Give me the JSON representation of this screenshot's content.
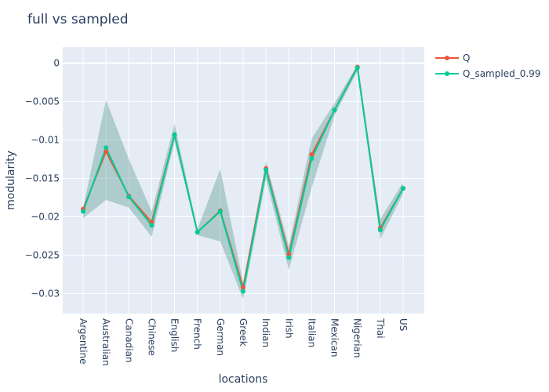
{
  "chart_data": {
    "type": "line",
    "title": "full vs sampled",
    "xlabel": "locations",
    "ylabel": "modularity",
    "categories": [
      "Argentine",
      "Australian",
      "Canadian",
      "Chinese",
      "English",
      "French",
      "German",
      "Greek",
      "Indian",
      "Irish",
      "Italian",
      "Mexican",
      "Nigerian",
      "Thai",
      "US"
    ],
    "ylim": [
      -0.0326,
      0.0021
    ],
    "y_ticks": [
      0,
      -0.005,
      -0.01,
      -0.015,
      -0.02,
      -0.025,
      -0.03
    ],
    "y_tick_labels": [
      "0",
      "−0.005",
      "−0.01",
      "−0.015",
      "−0.02",
      "−0.025",
      "−0.03"
    ],
    "grid": true,
    "legend_position": "top-right",
    "series": [
      {
        "name": "Q",
        "color": "#EF553B",
        "values": [
          -0.019,
          -0.0115,
          -0.0173,
          -0.0207,
          -0.0093,
          -0.022,
          -0.0192,
          -0.0292,
          -0.0137,
          -0.0249,
          -0.0119,
          -0.0061,
          -0.0005,
          -0.0215,
          -0.0163
        ]
      },
      {
        "name": "Q_sampled_0.99",
        "color": "#00CC96",
        "values": [
          -0.0193,
          -0.011,
          -0.0174,
          -0.0211,
          -0.0093,
          -0.022,
          -0.0193,
          -0.0297,
          -0.0139,
          -0.0253,
          -0.0124,
          -0.0061,
          -0.0006,
          -0.0217,
          -0.0163
        ],
        "band_upper": [
          -0.0188,
          -0.0048,
          -0.0125,
          -0.0193,
          -0.0079,
          -0.0216,
          -0.0138,
          -0.0285,
          -0.0128,
          -0.0238,
          -0.0098,
          -0.0052,
          -0.0002,
          -0.0203,
          -0.0155
        ],
        "band_lower": [
          -0.0202,
          -0.0178,
          -0.0188,
          -0.0226,
          -0.0102,
          -0.0224,
          -0.0232,
          -0.0307,
          -0.0151,
          -0.0269,
          -0.0162,
          -0.0068,
          -0.001,
          -0.0229,
          -0.017
        ],
        "band_color": "#2f7f6f"
      }
    ]
  }
}
